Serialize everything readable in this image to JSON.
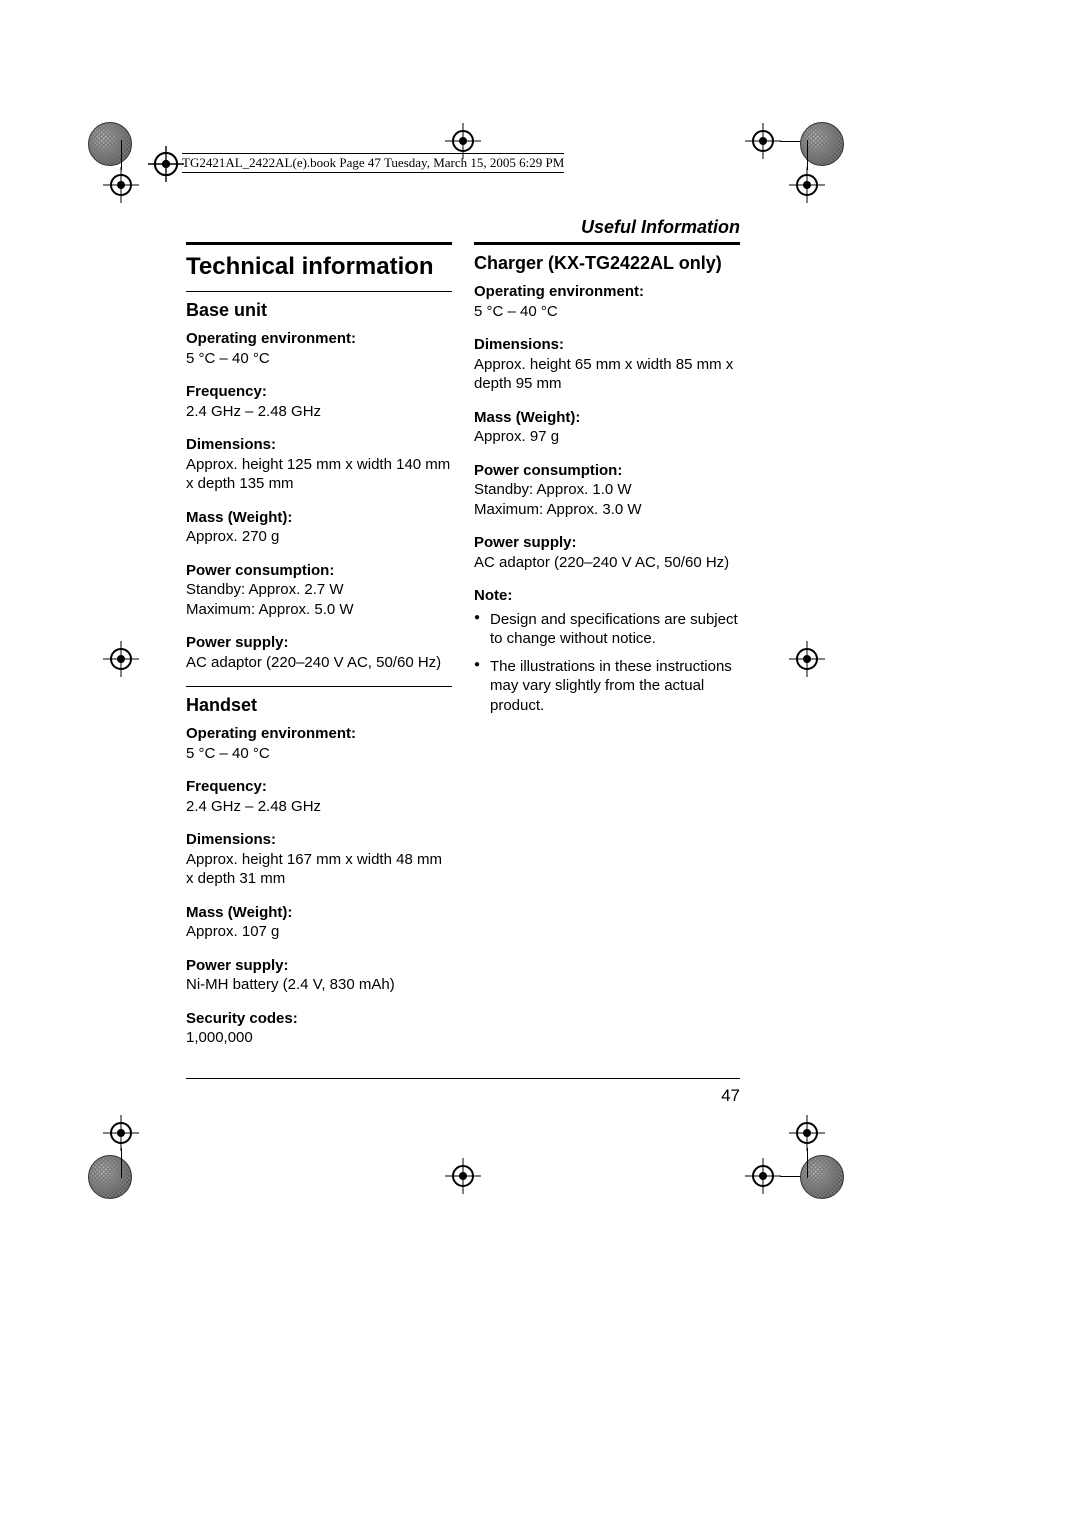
{
  "header_text": "TG2421AL_2422AL(e).book  Page 47  Tuesday, March 15, 2005  6:29 PM",
  "running_head": "Useful Information",
  "title": "Technical information",
  "page_number": "47",
  "base_unit": {
    "heading": "Base unit",
    "specs": [
      {
        "label": "Operating environment:",
        "value": "5 °C – 40 °C"
      },
      {
        "label": "Frequency:",
        "value": "2.4 GHz – 2.48 GHz"
      },
      {
        "label": "Dimensions:",
        "value": "Approx. height 125 mm x width 140 mm x depth 135 mm"
      },
      {
        "label": "Mass (Weight):",
        "value": "Approx. 270 g"
      },
      {
        "label": "Power consumption:",
        "value": "Standby: Approx. 2.7 W\nMaximum: Approx. 5.0 W"
      },
      {
        "label": "Power supply:",
        "value": "AC adaptor (220–240 V AC, 50/60 Hz)"
      }
    ]
  },
  "handset": {
    "heading": "Handset",
    "specs": [
      {
        "label": "Operating environment:",
        "value": "5 °C – 40 °C"
      },
      {
        "label": "Frequency:",
        "value": "2.4 GHz – 2.48 GHz"
      },
      {
        "label": "Dimensions:",
        "value": "Approx. height 167 mm x width 48 mm x depth 31 mm"
      },
      {
        "label": "Mass (Weight):",
        "value": "Approx. 107 g"
      },
      {
        "label": "Power supply:",
        "value": "Ni-MH battery (2.4 V, 830 mAh)"
      },
      {
        "label": "Security codes:",
        "value": "1,000,000"
      }
    ]
  },
  "charger": {
    "heading": "Charger (KX-TG2422AL only)",
    "specs": [
      {
        "label": "Operating environment:",
        "value": "5 °C – 40 °C"
      },
      {
        "label": "Dimensions:",
        "value": "Approx. height 65 mm x width 85 mm x depth 95 mm"
      },
      {
        "label": "Mass (Weight):",
        "value": "Approx. 97 g"
      },
      {
        "label": "Power consumption:",
        "value": "Standby: Approx. 1.0 W\nMaximum: Approx. 3.0 W"
      },
      {
        "label": "Power supply:",
        "value": "AC adaptor (220–240 V AC, 50/60 Hz)"
      }
    ]
  },
  "note": {
    "heading": "Note:",
    "items": [
      "Design and specifications are subject to change without notice.",
      "The illustrations in these instructions may vary slightly from the actual product."
    ]
  }
}
